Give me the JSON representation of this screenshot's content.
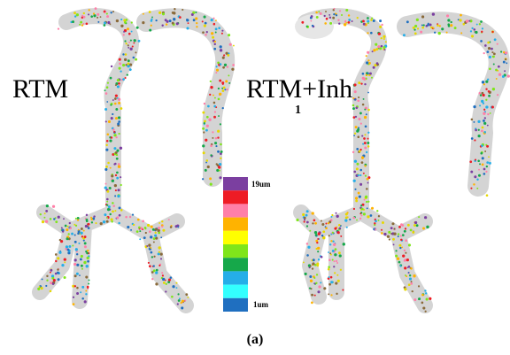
{
  "labels": {
    "left": "RTM",
    "right": "RTM+Inh",
    "right_cut": "1"
  },
  "legend": {
    "max": "19um",
    "min": "1um"
  },
  "caption": "(a)"
}
